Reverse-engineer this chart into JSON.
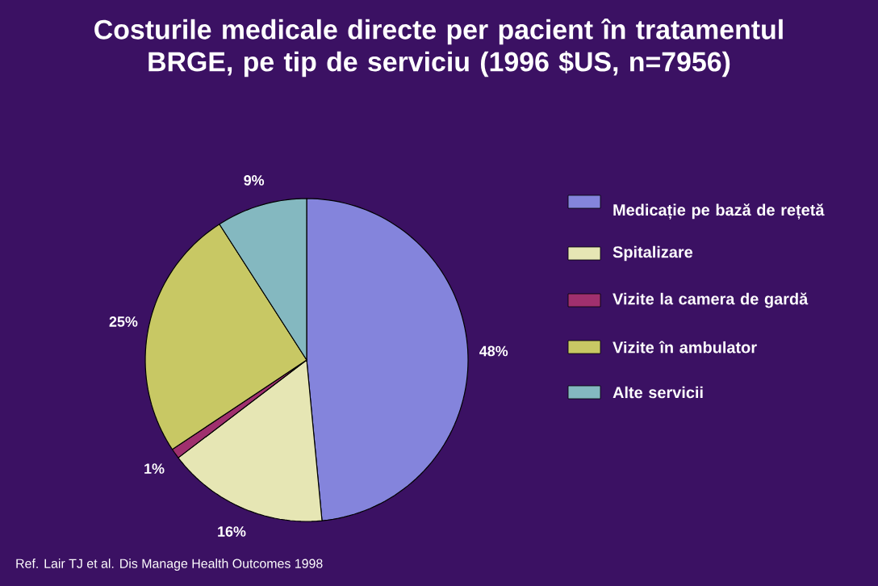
{
  "chart_data": {
    "type": "pie",
    "title": "Costurile medicale directe per pacient în tratamentul BRGE, pe tip de serviciu (1996 $US, n=7956)",
    "categories": [
      "Medicație pe bază de rețetă",
      "Spitalizare",
      "Vizite la camera de gardă",
      "Vizite în ambulator",
      "Alte servicii"
    ],
    "values": [
      48,
      16,
      1,
      25,
      9
    ],
    "value_labels": [
      "48%",
      "16%",
      "1%",
      "25%",
      "9%"
    ],
    "colors": [
      "#8484dc",
      "#e6e6b4",
      "#a0306e",
      "#c8c864",
      "#84b8c0"
    ],
    "legend": "right",
    "annotations": [
      "Ref. Lair TJ et al. Dis Manage Health Outcomes 1998"
    ]
  }
}
